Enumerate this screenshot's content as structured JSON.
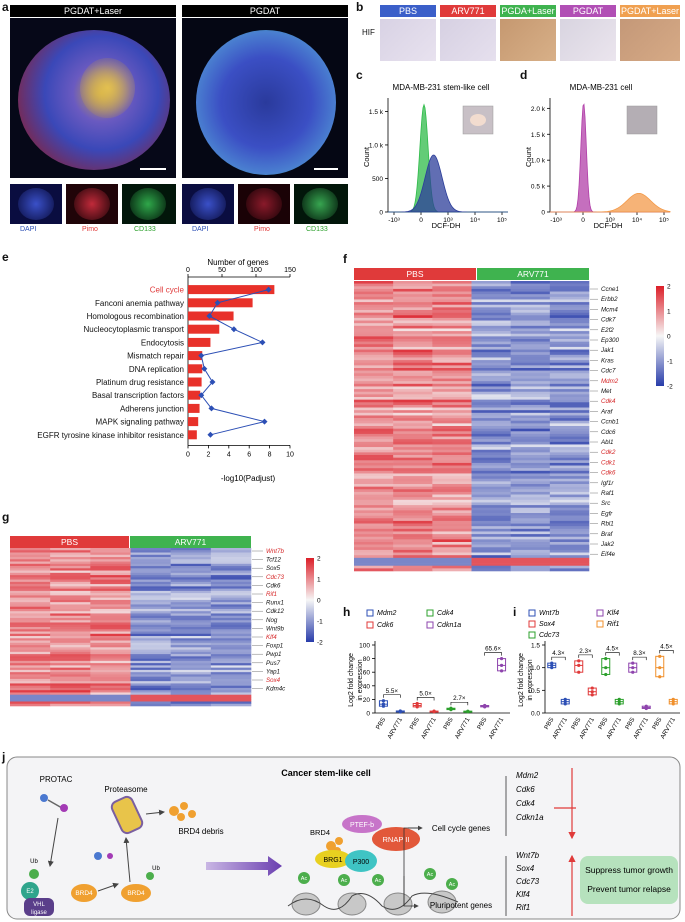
{
  "panel_a": {
    "label": "a",
    "titles": [
      "PGDAT+Laser",
      "PGDAT"
    ],
    "channels": [
      "DAPI",
      "Pimo",
      "CD133",
      "DAPI",
      "Pimo",
      "CD133"
    ]
  },
  "panel_b": {
    "label": "b",
    "row_label": "HIF",
    "groups": [
      {
        "name": "PBS",
        "color": "#3b5fc9"
      },
      {
        "name": "ARV771",
        "color": "#e03a3a"
      },
      {
        "name": "PGDA+Laser",
        "color": "#3fb34f"
      },
      {
        "name": "PGDAT",
        "color": "#b14fb5"
      },
      {
        "name": "PGDAT+Laser",
        "color": "#f0a050"
      }
    ]
  },
  "panel_c": {
    "label": "c",
    "title": "MDA-MB-231 stem-like cell",
    "ylabel": "Count",
    "xlabel": "DCF-DH",
    "yticks": [
      "0",
      "500",
      "1.0 k",
      "1.5 k"
    ],
    "xticks": [
      "-10³",
      "0",
      "10³",
      "10⁴",
      "10⁵"
    ]
  },
  "panel_d": {
    "label": "d",
    "title": "MDA-MB-231 cell",
    "ylabel": "Count",
    "xlabel": "DCF-DH",
    "yticks": [
      "0",
      "0.5 k",
      "1.0 k",
      "1.5 k",
      "2.0 k"
    ],
    "xticks": [
      "-10³",
      "0",
      "10³",
      "10⁴",
      "10⁵"
    ]
  },
  "panel_e": {
    "label": "e",
    "top_axis_title": "Number of genes",
    "top_ticks": [
      "0",
      "50",
      "100",
      "150"
    ],
    "bottom_axis_title": "-log10(Padjust)",
    "bottom_ticks": [
      "0",
      "2",
      "4",
      "6",
      "8",
      "10"
    ]
  },
  "panel_f": {
    "label": "f",
    "groups": [
      "PBS",
      "ARV771"
    ],
    "colorbar_ticks": [
      "2",
      "1",
      "0",
      "-1",
      "-2"
    ],
    "genes": [
      {
        "name": "Ccne1",
        "red": false
      },
      {
        "name": "Erbb2",
        "red": false
      },
      {
        "name": "Mcm4",
        "red": false
      },
      {
        "name": "Cdk7",
        "red": false
      },
      {
        "name": "E2f2",
        "red": false
      },
      {
        "name": "Ep300",
        "red": false
      },
      {
        "name": "Jak1",
        "red": false
      },
      {
        "name": "Kras",
        "red": false
      },
      {
        "name": "Cdc7",
        "red": false
      },
      {
        "name": "Mdm2",
        "red": true
      },
      {
        "name": "Met",
        "red": false
      },
      {
        "name": "Cdk4",
        "red": true
      },
      {
        "name": "Araf",
        "red": false
      },
      {
        "name": "Ccnb1",
        "red": false
      },
      {
        "name": "Cdc6",
        "red": false
      },
      {
        "name": "Abl1",
        "red": false
      },
      {
        "name": "Cdk2",
        "red": true
      },
      {
        "name": "Cdk1",
        "red": true
      },
      {
        "name": "Cdk6",
        "red": true
      },
      {
        "name": "Igf1r",
        "red": false
      },
      {
        "name": "Raf1",
        "red": false
      },
      {
        "name": "Src",
        "red": false
      },
      {
        "name": "Egfr",
        "red": false
      },
      {
        "name": "Rbl1",
        "red": false
      },
      {
        "name": "Braf",
        "red": false
      },
      {
        "name": "Jak2",
        "red": false
      },
      {
        "name": "Eif4e",
        "red": false
      }
    ]
  },
  "panel_g": {
    "label": "g",
    "groups": [
      "PBS",
      "ARV771"
    ],
    "colorbar_ticks": [
      "2",
      "1",
      "0",
      "-1",
      "-2"
    ],
    "genes": [
      {
        "name": "Wnt7b",
        "red": true
      },
      {
        "name": "Tcf12",
        "red": false
      },
      {
        "name": "Sox5",
        "red": false
      },
      {
        "name": "Cdc73",
        "red": true
      },
      {
        "name": "Cdk6",
        "red": false
      },
      {
        "name": "Rif1",
        "red": true
      },
      {
        "name": "Runx1",
        "red": false
      },
      {
        "name": "Cdk12",
        "red": false
      },
      {
        "name": "Nog",
        "red": false
      },
      {
        "name": "Wnt9b",
        "red": false
      },
      {
        "name": "Klf4",
        "red": true
      },
      {
        "name": "Foxp1",
        "red": false
      },
      {
        "name": "Pwp1",
        "red": false
      },
      {
        "name": "Pus7",
        "red": false
      },
      {
        "name": "Yap1",
        "red": false
      },
      {
        "name": "Sox4",
        "red": true
      },
      {
        "name": "Kdm4c",
        "red": false
      }
    ]
  },
  "panel_h": {
    "label": "h",
    "ylabel": "Log2 fold change in expression",
    "legend": [
      {
        "name": "Mdm2",
        "color": "#2c4fb5"
      },
      {
        "name": "Cdk4",
        "color": "#2ca02c"
      },
      {
        "name": "Cdk6",
        "color": "#e03a3a"
      },
      {
        "name": "Cdkn1a",
        "color": "#8e44ad"
      }
    ],
    "folds": [
      "5.5×",
      "5.0×",
      "2.7×",
      "65.6×"
    ],
    "xticks": [
      "PBS",
      "ARV771",
      "PBS",
      "ARV771",
      "PBS",
      "ARV771",
      "PBS",
      "ARV771"
    ],
    "yticks": [
      "0",
      "20",
      "40",
      "60",
      "80",
      "100"
    ]
  },
  "panel_i": {
    "label": "i",
    "ylabel": "Log2 fold change in expression",
    "legend": [
      {
        "name": "Wnt7b",
        "color": "#2c4fb5"
      },
      {
        "name": "Klf4",
        "color": "#8e44ad"
      },
      {
        "name": "Sox4",
        "color": "#e03a3a"
      },
      {
        "name": "Rif1",
        "color": "#f0902c"
      },
      {
        "name": "Cdc73",
        "color": "#2ca02c"
      }
    ],
    "folds": [
      "4.3×",
      "2.3×",
      "4.5×",
      "8.3×",
      "4.5×"
    ],
    "xticks": [
      "PBS",
      "ARV771",
      "PBS",
      "ARV771",
      "PBS",
      "ARV771",
      "PBS",
      "ARV771",
      "PBS",
      "ARV771"
    ],
    "yticks": [
      "0.0",
      "0.5",
      "1.0",
      "1.5"
    ]
  },
  "panel_j": {
    "label": "j",
    "title": "Cancer stem-like cell",
    "protac": "PROTAC",
    "proteasome": "Proteasome",
    "debris": "BRD4 debris",
    "brd4": "BRD4",
    "ub": "Ub",
    "e2": "E2",
    "vhl": "VHL",
    "ligase": "ligase",
    "ptefb": "PTEF-b",
    "brg1": "BRG1",
    "p300": "P300",
    "rnap": "RNAP II",
    "ac": "Ac",
    "cell_cycle_label": "Cell cycle genes",
    "pluri_label": "Pluripotent genes",
    "cell_cycle_genes": [
      "Mdm2",
      "Cdk6",
      "Cdk4",
      "Cdkn1a"
    ],
    "pluri_genes": [
      "Wnt7b",
      "Sox4",
      "Cdc73",
      "Klf4",
      "Rif1"
    ],
    "outcomes": [
      "Suppress tumor growth",
      "Prevent tumor relapse"
    ]
  },
  "chart_data": [
    {
      "type": "bar",
      "title": "KEGG enrichment (panel e)",
      "categories": [
        "Cell cycle",
        "Fanconi anemia pathway",
        "Homologous recombination",
        "Nucleocytoplasmic transport",
        "Endocytosis",
        "Mismatch repair",
        "DNA replication",
        "Platinum drug resistance",
        "Basal transcription factors",
        "Adherens junction",
        "MAPK signaling pathway",
        "EGFR tyrosine kinase inhibitor resistance"
      ],
      "highlight": "Cell cycle",
      "series": [
        {
          "name": "Number of genes",
          "values": [
            127,
            95,
            67,
            46,
            33,
            21,
            21,
            20,
            18,
            17,
            15,
            13
          ]
        },
        {
          "name": "-log10(Padjust)",
          "values": [
            7.9,
            2.9,
            2.1,
            4.5,
            7.3,
            1.3,
            1.6,
            2.4,
            1.3,
            2.3,
            7.5,
            2.2
          ]
        }
      ],
      "top_xlim": [
        0,
        150
      ],
      "bottom_xlim": [
        0,
        10
      ]
    },
    {
      "type": "area",
      "title": "MDA-MB-231 stem-like cell",
      "xlabel": "DCF-DH",
      "ylabel": "Count",
      "ylim": [
        0,
        1700
      ],
      "series": [
        {
          "name": "green",
          "peak_x": 0.3,
          "peak_y": 1600,
          "width": 0.12
        },
        {
          "name": "blue",
          "peak_x": 0.38,
          "peak_y": 850,
          "width": 0.25
        }
      ]
    },
    {
      "type": "area",
      "title": "MDA-MB-231 cell",
      "xlabel": "DCF-DH",
      "ylabel": "Count",
      "ylim": [
        0,
        2200
      ],
      "series": [
        {
          "name": "purple",
          "peak_x": 0.28,
          "peak_y": 2100,
          "width": 0.08
        },
        {
          "name": "orange",
          "peak_x": 0.74,
          "peak_y": 360,
          "width": 0.35
        }
      ]
    },
    {
      "type": "scatter",
      "title": "qPCR fold change (panel h)",
      "ylim": [
        0,
        100
      ],
      "series": [
        {
          "name": "Mdm2 PBS",
          "values": [
            10,
            13,
            18
          ]
        },
        {
          "name": "Mdm2 ARV771",
          "values": [
            1.5,
            2.2,
            3
          ]
        },
        {
          "name": "Cdk6 PBS",
          "values": [
            9,
            11,
            14
          ]
        },
        {
          "name": "Cdk6 ARV771",
          "values": [
            1.8,
            2.2,
            2.8
          ]
        },
        {
          "name": "Cdk4 PBS",
          "values": [
            5,
            6,
            7
          ]
        },
        {
          "name": "Cdk4 ARV771",
          "values": [
            1.8,
            2.3,
            2.7
          ]
        },
        {
          "name": "Cdkn1a PBS",
          "values": [
            9,
            10,
            11
          ]
        },
        {
          "name": "Cdkn1a ARV771",
          "values": [
            62,
            70,
            80
          ]
        }
      ]
    },
    {
      "type": "scatter",
      "title": "qPCR fold change (panel i)",
      "ylim": [
        0,
        1.5
      ],
      "series": [
        {
          "name": "Wnt7b PBS",
          "values": [
            1.0,
            1.05,
            1.1
          ]
        },
        {
          "name": "Wnt7b ARV771",
          "values": [
            0.2,
            0.25,
            0.3
          ]
        },
        {
          "name": "Sox4 PBS",
          "values": [
            0.9,
            1.05,
            1.15
          ]
        },
        {
          "name": "Sox4 ARV771",
          "values": [
            0.4,
            0.47,
            0.55
          ]
        },
        {
          "name": "Cdc73 PBS",
          "values": [
            0.85,
            1.0,
            1.2
          ]
        },
        {
          "name": "Cdc73 ARV771",
          "values": [
            0.2,
            0.25,
            0.3
          ]
        },
        {
          "name": "Klf4 PBS",
          "values": [
            0.9,
            1.0,
            1.1
          ]
        },
        {
          "name": "Klf4 ARV771",
          "values": [
            0.1,
            0.12,
            0.15
          ]
        },
        {
          "name": "Rif1 PBS",
          "values": [
            0.8,
            1.0,
            1.25
          ]
        },
        {
          "name": "Rif1 ARV771",
          "values": [
            0.2,
            0.25,
            0.3
          ]
        }
      ]
    }
  ]
}
